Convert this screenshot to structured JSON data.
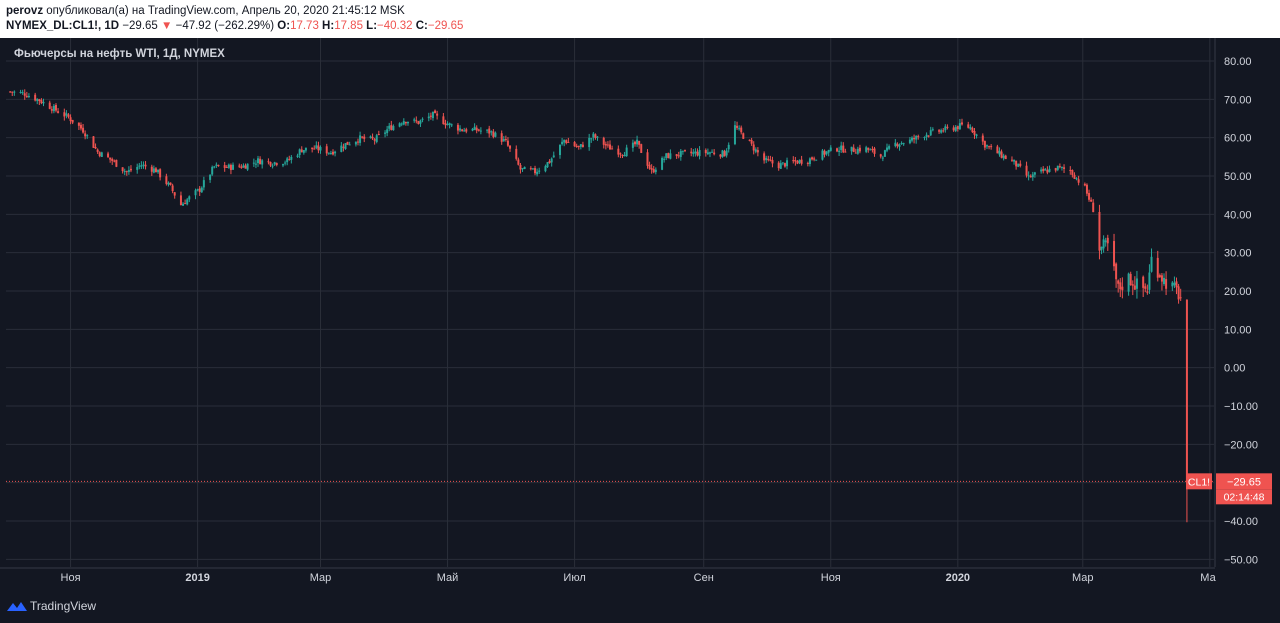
{
  "header": {
    "author": "perovz",
    "published_text": "опубликовал(а) на TradingView.com, Апрель 20, 2020 21:45:12 MSK",
    "symbol": "NYMEX_DL:CL1!, 1D",
    "last": "−29.65",
    "change_arrow": "▼",
    "change": "−47.92 (−262.29%)",
    "o_label": "O:",
    "o_value": "17.73",
    "h_label": "H:",
    "h_value": "17.85",
    "l_label": "L:",
    "l_value": "−40.32",
    "c_label": "C:",
    "c_value": "−29.65"
  },
  "footer": {
    "logo_text": "TradingView",
    "logo_icon": "tradingview-logo-icon"
  },
  "colors": {
    "background": "#131722",
    "grid": "#2a2e39",
    "up": "#26a69a",
    "down": "#ef5350",
    "text": "#d1d4dc"
  },
  "chart_data": {
    "type": "candlestick",
    "title": "Фьючерсы на нефть WTI, 1Д, NYMEX",
    "grid": true,
    "y_axis": {
      "side": "right",
      "range": [
        -52,
        86
      ],
      "ticks": [
        80,
        70,
        60,
        50,
        40,
        30,
        20,
        10,
        0,
        -10,
        -20,
        -30,
        -40,
        -50
      ],
      "tick_labels": [
        "80.00",
        "70.00",
        "60.00",
        "50.00",
        "40.00",
        "30.00",
        "20.00",
        "10.00",
        "0.00",
        "−10.00",
        "−20.00",
        "−30.00",
        "−40.00",
        "−50.00"
      ]
    },
    "x_axis": {
      "labels": [
        "Ноя",
        "2019",
        "Мар",
        "Май",
        "Июл",
        "Сен",
        "Ноя",
        "2020",
        "Мар",
        "Ма"
      ],
      "label_dates": [
        "2018-11-01",
        "2019-01-01",
        "2019-03-01",
        "2019-05-01",
        "2019-07-01",
        "2019-09-01",
        "2019-11-01",
        "2020-01-01",
        "2020-03-01",
        "2020-05-01"
      ],
      "bold_labels": [
        "2019",
        "2020"
      ]
    },
    "price_series_approx_close": [
      [
        "2018-10-03",
        72.0
      ],
      [
        "2018-10-10",
        71.5
      ],
      [
        "2018-10-17",
        69.8
      ],
      [
        "2018-10-24",
        67.5
      ],
      [
        "2018-10-31",
        65.3
      ],
      [
        "2018-11-07",
        62.0
      ],
      [
        "2018-11-14",
        56.3
      ],
      [
        "2018-11-21",
        54.0
      ],
      [
        "2018-11-28",
        51.0
      ],
      [
        "2018-12-05",
        52.9
      ],
      [
        "2018-12-12",
        51.5
      ],
      [
        "2018-12-19",
        47.0
      ],
      [
        "2018-12-24",
        42.5
      ],
      [
        "2019-01-02",
        46.5
      ],
      [
        "2019-01-09",
        52.4
      ],
      [
        "2019-01-16",
        52.3
      ],
      [
        "2019-01-23",
        52.6
      ],
      [
        "2019-01-30",
        54.0
      ],
      [
        "2019-02-06",
        53.5
      ],
      [
        "2019-02-13",
        53.9
      ],
      [
        "2019-02-20",
        56.9
      ],
      [
        "2019-02-27",
        57.2
      ],
      [
        "2019-03-06",
        56.2
      ],
      [
        "2019-03-13",
        58.3
      ],
      [
        "2019-03-20",
        59.8
      ],
      [
        "2019-03-27",
        59.4
      ],
      [
        "2019-04-03",
        62.5
      ],
      [
        "2019-04-10",
        64.6
      ],
      [
        "2019-04-17",
        64.0
      ],
      [
        "2019-04-24",
        65.9
      ],
      [
        "2019-05-01",
        63.6
      ],
      [
        "2019-05-08",
        62.1
      ],
      [
        "2019-05-15",
        62.0
      ],
      [
        "2019-05-22",
        61.4
      ],
      [
        "2019-05-29",
        58.8
      ],
      [
        "2019-06-05",
        51.7
      ],
      [
        "2019-06-12",
        51.1
      ],
      [
        "2019-06-19",
        53.8
      ],
      [
        "2019-06-26",
        59.4
      ],
      [
        "2019-07-03",
        57.3
      ],
      [
        "2019-07-10",
        60.4
      ],
      [
        "2019-07-17",
        57.6
      ],
      [
        "2019-07-24",
        56.0
      ],
      [
        "2019-07-31",
        58.6
      ],
      [
        "2019-08-07",
        51.1
      ],
      [
        "2019-08-14",
        55.2
      ],
      [
        "2019-08-21",
        55.7
      ],
      [
        "2019-08-28",
        56.0
      ],
      [
        "2019-09-04",
        56.2
      ],
      [
        "2019-09-11",
        55.8
      ],
      [
        "2019-09-16",
        62.9
      ],
      [
        "2019-09-23",
        58.6
      ],
      [
        "2019-09-30",
        54.1
      ],
      [
        "2019-10-07",
        52.8
      ],
      [
        "2019-10-14",
        53.6
      ],
      [
        "2019-10-21",
        54.2
      ],
      [
        "2019-10-28",
        55.8
      ],
      [
        "2019-11-04",
        57.2
      ],
      [
        "2019-11-11",
        56.8
      ],
      [
        "2019-11-18",
        57.1
      ],
      [
        "2019-11-25",
        55.2
      ],
      [
        "2019-12-02",
        58.4
      ],
      [
        "2019-12-09",
        59.2
      ],
      [
        "2019-12-16",
        60.9
      ],
      [
        "2019-12-23",
        61.7
      ],
      [
        "2020-01-03",
        63.1
      ],
      [
        "2020-01-07",
        62.7
      ],
      [
        "2020-01-14",
        58.2
      ],
      [
        "2020-01-21",
        55.7
      ],
      [
        "2020-01-28",
        53.5
      ],
      [
        "2020-02-04",
        49.6
      ],
      [
        "2020-02-11",
        51.2
      ],
      [
        "2020-02-18",
        52.1
      ],
      [
        "2020-02-24",
        51.4
      ],
      [
        "2020-03-02",
        46.8
      ],
      [
        "2020-03-06",
        41.3
      ],
      [
        "2020-03-09",
        31.1
      ],
      [
        "2020-03-13",
        31.7
      ],
      [
        "2020-03-18",
        20.4
      ],
      [
        "2020-03-23",
        23.4
      ],
      [
        "2020-03-27",
        21.5
      ],
      [
        "2020-04-01",
        20.3
      ],
      [
        "2020-04-03",
        28.3
      ],
      [
        "2020-04-09",
        22.8
      ],
      [
        "2020-04-15",
        19.9
      ],
      [
        "2020-04-17",
        18.3
      ],
      [
        "2020-04-20",
        -29.65
      ]
    ],
    "last_candle": {
      "date": "2020-04-20",
      "open": 17.73,
      "high": 17.85,
      "low": -40.32,
      "close": -29.65
    },
    "price_line": {
      "value": -29.65
    },
    "price_label": {
      "symbol": "CL1!",
      "value": "−29.65",
      "countdown": "02:14:48",
      "color": "#ef5350"
    }
  }
}
